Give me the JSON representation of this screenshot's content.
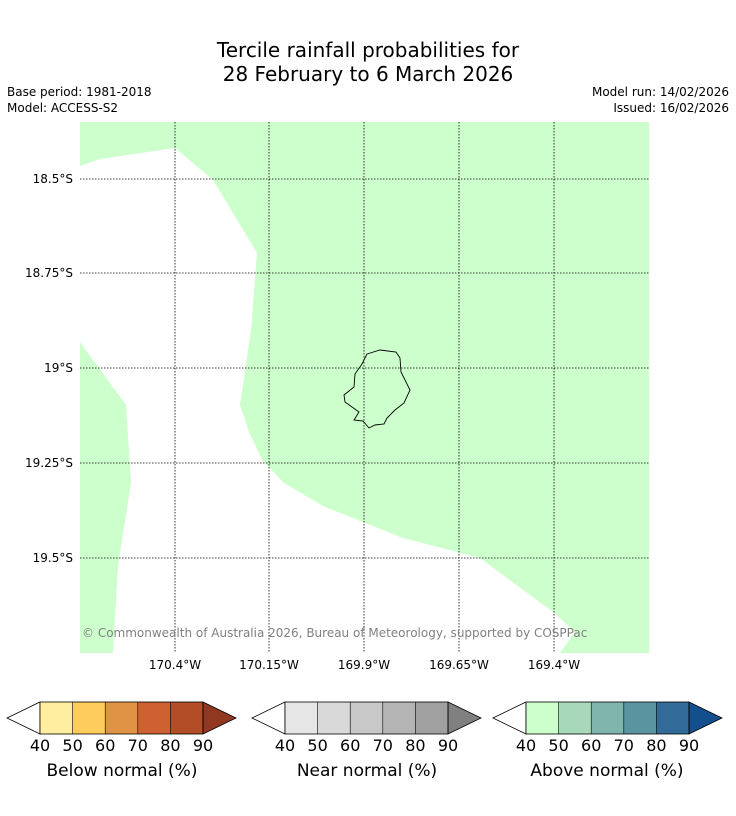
{
  "title": {
    "line1": "Tercile rainfall probabilities for",
    "line2": "28 February to 6 March 2026"
  },
  "meta": {
    "base_period": "Base period: 1981-2018",
    "model": "Model: ACCESS-S2",
    "model_run": "Model run: 14/02/2026",
    "issued": "Issued: 16/02/2026"
  },
  "map": {
    "latitude_labels": [
      "18.5°S",
      "18.75°S",
      "19°S",
      "19.25°S",
      "19.5°S"
    ],
    "longitude_labels": [
      "170.4°W",
      "170.15°W",
      "169.9°W",
      "169.65°W",
      "169.4°W"
    ],
    "copyright": "© Commonwealth of Australia 2026, Bureau of Meteorology, supported by COSPPac",
    "shaded_category": "Above normal 40-50%",
    "shade_color": "#ccffcc",
    "island_outline_color": "#000000"
  },
  "colorbars": [
    {
      "label": "Below normal (%)",
      "ticks": [
        "40",
        "50",
        "60",
        "70",
        "80",
        "90"
      ],
      "colors": [
        "#ffeda0",
        "#fecc5c",
        "#e09345",
        "#cf6131",
        "#b24d27"
      ],
      "over_color": "#923821"
    },
    {
      "label": "Near normal (%)",
      "ticks": [
        "40",
        "50",
        "60",
        "70",
        "80",
        "90"
      ],
      "colors": [
        "#e6e6e6",
        "#d9d9d9",
        "#c8c8c8",
        "#b4b4b4",
        "#a0a0a0"
      ],
      "over_color": "#808080"
    },
    {
      "label": "Above normal (%)",
      "ticks": [
        "40",
        "50",
        "60",
        "70",
        "80",
        "90"
      ],
      "colors": [
        "#ccffcc",
        "#a8d8ba",
        "#7fb5ac",
        "#5a94a0",
        "#326a98"
      ],
      "over_color": "#134f8c"
    }
  ]
}
